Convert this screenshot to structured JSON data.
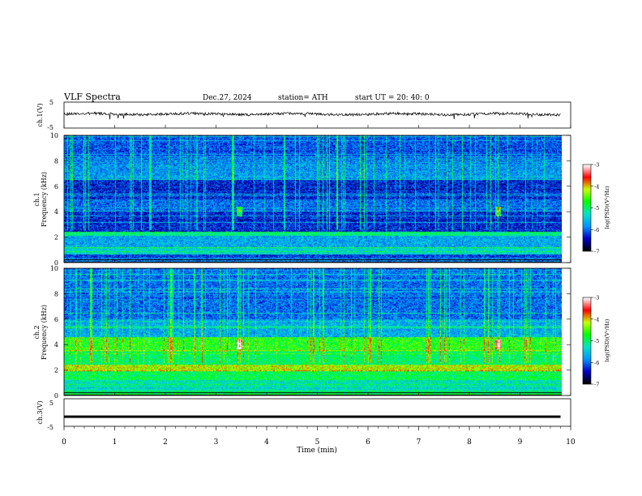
{
  "header": {
    "title": "VLF  Spectra",
    "date": "Dec.27, 2024",
    "station": "station= ATH",
    "start": "start  UT  =    20: 40: 0"
  },
  "chart_data": [
    {
      "type": "line",
      "panel": "ch1-waveform",
      "ylabel": "ch.1(V)",
      "yticks": [
        "5",
        "-5"
      ],
      "ylim": [
        -5,
        5
      ],
      "xlim": [
        0,
        10
      ],
      "series": [
        {
          "approx_level_V": 0.4,
          "noise_amplitude_V": 0.5,
          "extent_min": [
            0,
            9.8
          ]
        }
      ]
    },
    {
      "type": "heatmap",
      "panel": "ch1-spectrogram",
      "ylabel_top": "ch.1",
      "ylabel": "Frequency  (kHz)",
      "ylim": [
        0,
        10
      ],
      "yticks": [
        "0",
        "2",
        "4",
        "6",
        "8",
        "10"
      ],
      "xlim": [
        0,
        9.8
      ],
      "colorbar": {
        "label": "log(PSD)(V²/Hz)",
        "ticks": [
          "-3",
          "-4",
          "-5",
          "-6",
          "-7"
        ],
        "range": [
          -7,
          -3
        ]
      },
      "bands_kHz": [
        {
          "range": [
            0,
            0.6
          ],
          "level": -6.2
        },
        {
          "range": [
            0.6,
            1.2
          ],
          "level": -5.4
        },
        {
          "range": [
            1.2,
            2.1
          ],
          "level": -5.7
        },
        {
          "range": [
            2.1,
            2.4
          ],
          "level": -5.1
        },
        {
          "range": [
            2.4,
            4.0
          ],
          "level": -6.3
        },
        {
          "range": [
            4.0,
            5.0
          ],
          "level": -6.0
        },
        {
          "range": [
            5.0,
            6.5
          ],
          "level": -6.3
        },
        {
          "range": [
            6.5,
            8.0
          ],
          "level": -5.8
        },
        {
          "range": [
            8.0,
            10.0
          ],
          "level": -6.1
        }
      ],
      "bursts_min": [
        3.45,
        8.55
      ]
    },
    {
      "type": "heatmap",
      "panel": "ch2-spectrogram",
      "ylabel_top": "ch.2",
      "ylabel": "Frequency  (kHz)",
      "ylim": [
        0,
        10
      ],
      "yticks": [
        "0",
        "2",
        "4",
        "6",
        "8",
        "10"
      ],
      "xlim": [
        0,
        9.8
      ],
      "colorbar": {
        "label": "log(PSD)(V²/Hz)",
        "ticks": [
          "-3",
          "-4",
          "-5",
          "-6",
          "-7"
        ],
        "range": [
          -7,
          -3
        ]
      },
      "bands_kHz": [
        {
          "range": [
            0,
            1.2
          ],
          "level": -5.3
        },
        {
          "range": [
            1.2,
            1.9
          ],
          "level": -4.9
        },
        {
          "range": [
            1.9,
            2.4
          ],
          "level": -4.2
        },
        {
          "range": [
            2.4,
            3.4
          ],
          "level": -5.0
        },
        {
          "range": [
            3.4,
            4.6
          ],
          "level": -4.7
        },
        {
          "range": [
            4.6,
            6.0
          ],
          "level": -5.7
        },
        {
          "range": [
            6.0,
            10.0
          ],
          "level": -6.0
        }
      ],
      "bursts_min": [
        3.45,
        8.55
      ]
    },
    {
      "type": "line",
      "panel": "ch3-waveform",
      "ylabel": "ch.3(V)",
      "yticks": [
        "5",
        "-5"
      ],
      "ylim": [
        -5,
        5
      ],
      "xlim": [
        0,
        10
      ],
      "series": [
        {
          "approx_level_V": -1.5,
          "extent_min": [
            0,
            9.8
          ]
        }
      ]
    }
  ],
  "xaxis": {
    "label": "Time  (min)",
    "ticks": [
      "0",
      "1",
      "2",
      "3",
      "4",
      "5",
      "6",
      "7",
      "8",
      "9",
      "10"
    ]
  },
  "colors": {
    "colormap": [
      "#000000",
      "#0000c8",
      "#0096ff",
      "#00e6c8",
      "#00ff00",
      "#c8ff00",
      "#ff0000",
      "#ffffff"
    ]
  }
}
